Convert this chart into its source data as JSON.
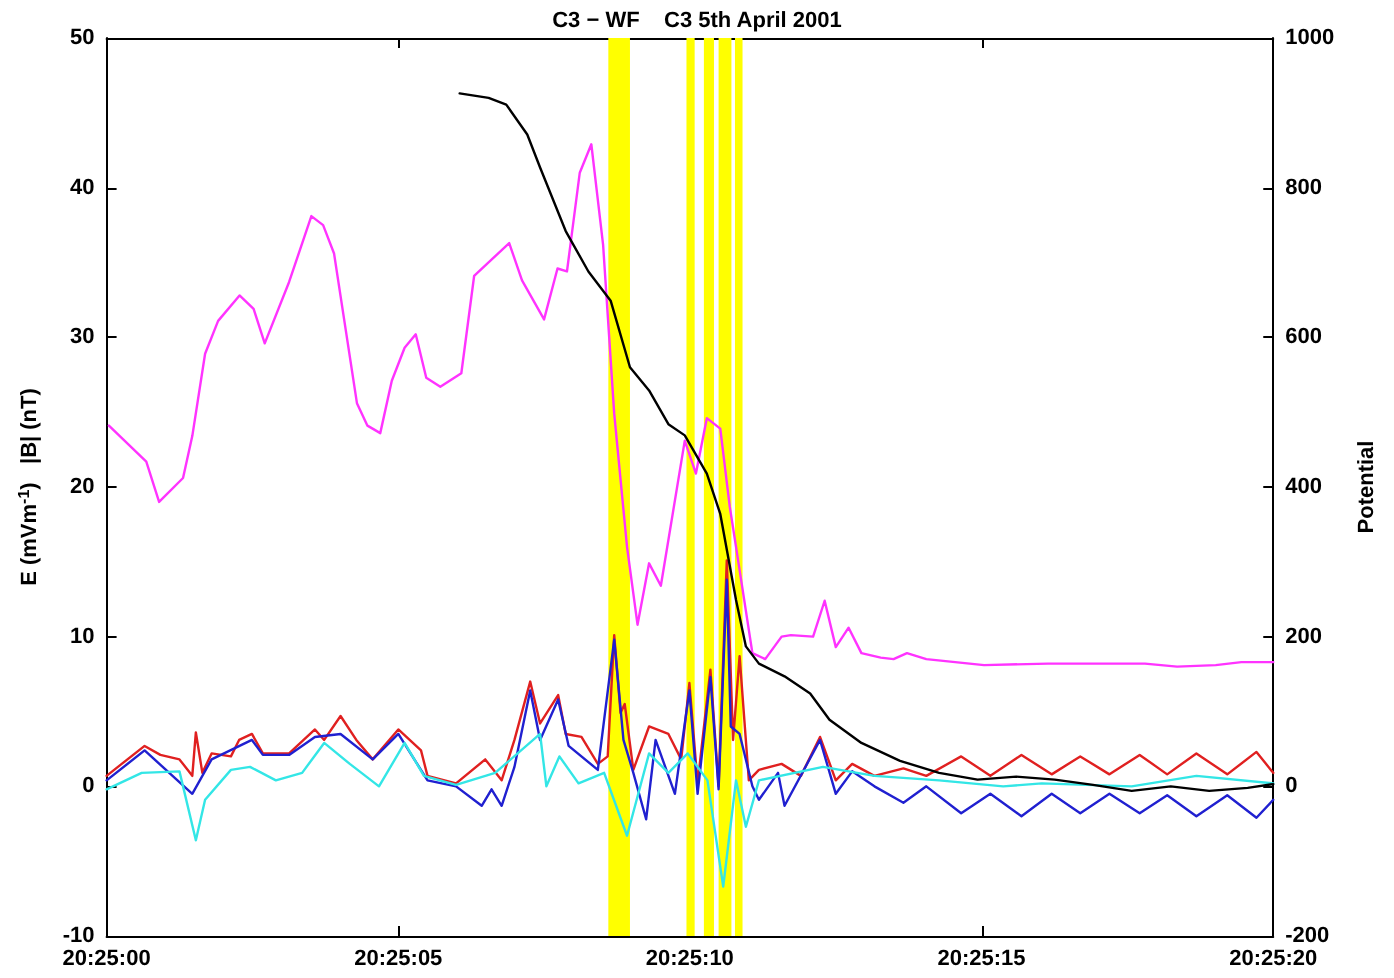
{
  "chart_data": {
    "type": "line",
    "title": "C3 − WF    C3 5th April 2001",
    "ylabel": "E (mVm$^{-1}$)   |B| (nT)",
    "y2label": "Potential",
    "xlim": [
      20.416667,
      20.422222
    ],
    "xticks": [
      {
        "value": 20.416667,
        "label": "20:25:00"
      },
      {
        "value": 20.418056,
        "label": "20:25:05"
      },
      {
        "value": 20.419444,
        "label": "20:25:10"
      },
      {
        "value": 20.420833,
        "label": "20:25:15"
      },
      {
        "value": 20.422222,
        "label": "20:25:20"
      }
    ],
    "ylim": [
      -10,
      50
    ],
    "yticks": [
      -10,
      0,
      10,
      20,
      30,
      40,
      50
    ],
    "y2lim": [
      -200,
      1000
    ],
    "y2ticks": [
      -200,
      0,
      200,
      400,
      600,
      800,
      1000
    ],
    "grid": false,
    "marker": "none",
    "line_style": "solid",
    "bands": [
      {
        "axis": "x",
        "from": 20.419056,
        "to": 20.419159,
        "color": "#ffff00"
      },
      {
        "axis": "x",
        "from": 20.419428,
        "to": 20.419467,
        "color": "#ffff00"
      },
      {
        "axis": "x",
        "from": 20.419511,
        "to": 20.419559,
        "color": "#ffff00"
      },
      {
        "axis": "x",
        "from": 20.419581,
        "to": 20.419642,
        "color": "#ffff00"
      },
      {
        "axis": "x",
        "from": 20.419659,
        "to": 20.419695,
        "color": "#ffff00"
      }
    ],
    "series": [
      {
        "color": "#ff33ff",
        "x": [
          20.416678,
          20.416856,
          20.416917,
          20.417031,
          20.417075,
          20.417136,
          20.417198,
          20.4173,
          20.417367,
          20.41742,
          20.417536,
          20.417642,
          20.417698,
          20.41775,
          20.417859,
          20.417909,
          20.41797,
          20.418025,
          20.418086,
          20.418139,
          20.418189,
          20.418256,
          20.418356,
          20.418417,
          20.418584,
          20.418645,
          20.41875,
          20.418814,
          20.418859,
          20.41892,
          20.418975,
          20.419031,
          20.419084,
          20.419145,
          20.419195,
          20.41925,
          20.419306,
          20.41942,
          20.419473,
          20.419525,
          20.419589,
          20.419634,
          20.419664,
          20.419742,
          20.419803,
          20.419881,
          20.419925,
          20.420031,
          20.420086,
          20.420139,
          20.4202,
          20.420261,
          20.420353,
          20.420414,
          20.420478,
          20.42057,
          20.420845,
          20.42115,
          20.421611,
          20.421764,
          20.421948,
          20.42207,
          20.422222
        ],
        "values": [
          24.1,
          21.7,
          19,
          20.6,
          23.4,
          28.9,
          31.1,
          32.8,
          31.9,
          29.6,
          33.7,
          38.1,
          37.5,
          35.6,
          25.6,
          24.1,
          23.6,
          27.1,
          29.3,
          30.2,
          27.3,
          26.7,
          27.6,
          34.1,
          36.3,
          33.8,
          31.2,
          34.6,
          34.4,
          41,
          42.9,
          36.2,
          24.9,
          16,
          10.8,
          14.9,
          13.4,
          23.1,
          20.9,
          24.6,
          23.9,
          18.7,
          16,
          8.9,
          8.5,
          10,
          10.1,
          10,
          12.4,
          9.3,
          10.6,
          8.9,
          8.6,
          8.5,
          8.9,
          8.5,
          8.1,
          8.2,
          8.2,
          8,
          8.1,
          8.3,
          8.3
        ]
      },
      {
        "color": "#e02020",
        "x": [
          20.416667,
          20.416739,
          20.416848,
          20.416923,
          20.417014,
          20.417075,
          20.417092,
          20.417123,
          20.417167,
          20.417259,
          20.417298,
          20.417359,
          20.417411,
          20.417536,
          20.417659,
          20.417703,
          20.417781,
          20.417856,
          20.417934,
          20.418056,
          20.418164,
          20.418195,
          20.418331,
          20.41847,
          20.418548,
          20.418609,
          20.418684,
          20.418731,
          20.418817,
          20.418853,
          20.418928,
          20.419006,
          20.419053,
          20.419084,
          20.419114,
          20.419134,
          20.419175,
          20.41925,
          20.419342,
          20.419403,
          20.419442,
          20.419481,
          20.419542,
          20.419581,
          20.41962,
          20.41965,
          20.419681,
          20.419725,
          20.419773,
          20.419881,
          20.419973,
          20.420064,
          20.420139,
          20.420217,
          20.420323,
          20.420461,
          20.42057,
          20.420736,
          20.420875,
          20.421023,
          20.421167,
          20.421303,
          20.421442,
          20.421586,
          20.421717,
          20.421856,
          20.422003,
          20.422142,
          20.422222
        ],
        "values": [
          0.7,
          1.5,
          2.7,
          2.1,
          1.8,
          0.7,
          3.6,
          0.9,
          2.2,
          2,
          3.1,
          3.5,
          2.2,
          2.2,
          3.8,
          3.1,
          4.7,
          3.1,
          1.8,
          3.8,
          2.4,
          0.7,
          0.2,
          1.8,
          0.4,
          3.1,
          7,
          4.2,
          6.1,
          3.5,
          3.3,
          1.5,
          2,
          10.1,
          4.9,
          5.5,
          1.1,
          4,
          3.5,
          1.8,
          6.9,
          0.2,
          7.8,
          0,
          15.1,
          3.1,
          8.7,
          0.4,
          1.1,
          1.5,
          0.7,
          3.3,
          0.4,
          1.5,
          0.7,
          1.2,
          0.7,
          2,
          0.7,
          2.1,
          0.8,
          2,
          0.8,
          2.1,
          0.8,
          2.2,
          0.8,
          2.3,
          0.9
        ]
      },
      {
        "color": "#2020d0",
        "x": [
          20.416667,
          20.416848,
          20.417075,
          20.417167,
          20.417359,
          20.417411,
          20.417536,
          20.417659,
          20.417781,
          20.417934,
          20.418056,
          20.418195,
          20.418331,
          20.418453,
          20.4185,
          20.418548,
          20.418609,
          20.418684,
          20.418731,
          20.418817,
          20.418867,
          20.419006,
          20.419084,
          20.419128,
          20.419175,
          20.419236,
          20.419281,
          20.419373,
          20.419442,
          20.419481,
          20.419542,
          20.419581,
          20.41962,
          20.419639,
          20.419681,
          20.419742,
          20.419773,
          20.419864,
          20.419895,
          20.420064,
          20.420139,
          20.420217,
          20.420323,
          20.420461,
          20.42057,
          20.420736,
          20.420875,
          20.421023,
          20.421167,
          20.421303,
          20.421442,
          20.421586,
          20.421717,
          20.421856,
          20.422003,
          20.422142,
          20.422222
        ],
        "values": [
          0.4,
          2.4,
          -0.5,
          1.8,
          3.1,
          2.1,
          2.1,
          3.3,
          3.5,
          1.8,
          3.5,
          0.4,
          0,
          -1.3,
          -0.2,
          -1.3,
          1.3,
          6.4,
          3.1,
          5.8,
          2.7,
          1.1,
          9.8,
          3.1,
          0.9,
          -2.2,
          3.1,
          -0.5,
          6.4,
          -0.5,
          7.3,
          -0.2,
          13.8,
          4,
          3.5,
          0,
          -0.9,
          0.9,
          -1.3,
          3.1,
          -0.5,
          1,
          0,
          -1.1,
          0,
          -1.8,
          -0.5,
          -2,
          -0.5,
          -1.8,
          -0.5,
          -1.8,
          -0.6,
          -2,
          -0.6,
          -2.1,
          -0.9
        ]
      },
      {
        "color": "#33e6e6",
        "x": [
          20.416667,
          20.416834,
          20.417014,
          20.417092,
          20.417136,
          20.417259,
          20.41735,
          20.417473,
          20.417598,
          20.417703,
          20.417825,
          20.417964,
          20.418086,
          20.418178,
          20.418331,
          20.418517,
          20.418731,
          20.418761,
          20.418823,
          20.418914,
          20.419036,
          20.419145,
          20.41925,
          20.419342,
          20.419434,
          20.419528,
          20.419603,
          20.419664,
          20.419711,
          20.419773,
          20.420078,
          20.420323,
          20.420631,
          20.420936,
          20.42112,
          20.421548,
          20.421856,
          20.422222
        ],
        "values": [
          -0.2,
          0.9,
          1,
          -3.6,
          -0.9,
          1.1,
          1.3,
          0.4,
          0.9,
          2.9,
          1.5,
          0,
          2.9,
          0.7,
          0.1,
          0.9,
          3.5,
          0,
          2,
          0.2,
          0.9,
          -3.3,
          2.2,
          0.9,
          2.2,
          0.4,
          -6.7,
          0.4,
          -2.7,
          0.4,
          1.3,
          0.7,
          0.4,
          0,
          0.2,
          0,
          0.7,
          0.2
        ]
      },
      {
        "color": "#000000",
        "axis": "y2",
        "x": [
          20.418348,
          20.418486,
          20.41857,
          20.41867,
          20.418731,
          20.418853,
          20.418961,
          20.419067,
          20.419159,
          20.41925,
          20.419342,
          20.41942,
          20.419525,
          20.419589,
          20.419664,
          20.419711,
          20.419773,
          20.419895,
          20.420017,
          20.420109,
          20.420261,
          20.420445,
          20.420631,
          20.420814,
          20.420998,
          20.421181,
          20.421364,
          20.421548,
          20.421734,
          20.421917,
          20.4221,
          20.422222
        ],
        "values": [
          926,
          920,
          911,
          871,
          827,
          742,
          688,
          649,
          560,
          529,
          484,
          469,
          418,
          364,
          249,
          187,
          164,
          147,
          124,
          89,
          58,
          34,
          18,
          9,
          13,
          9,
          2,
          -6,
          0,
          -6,
          -2,
          3
        ]
      }
    ]
  }
}
